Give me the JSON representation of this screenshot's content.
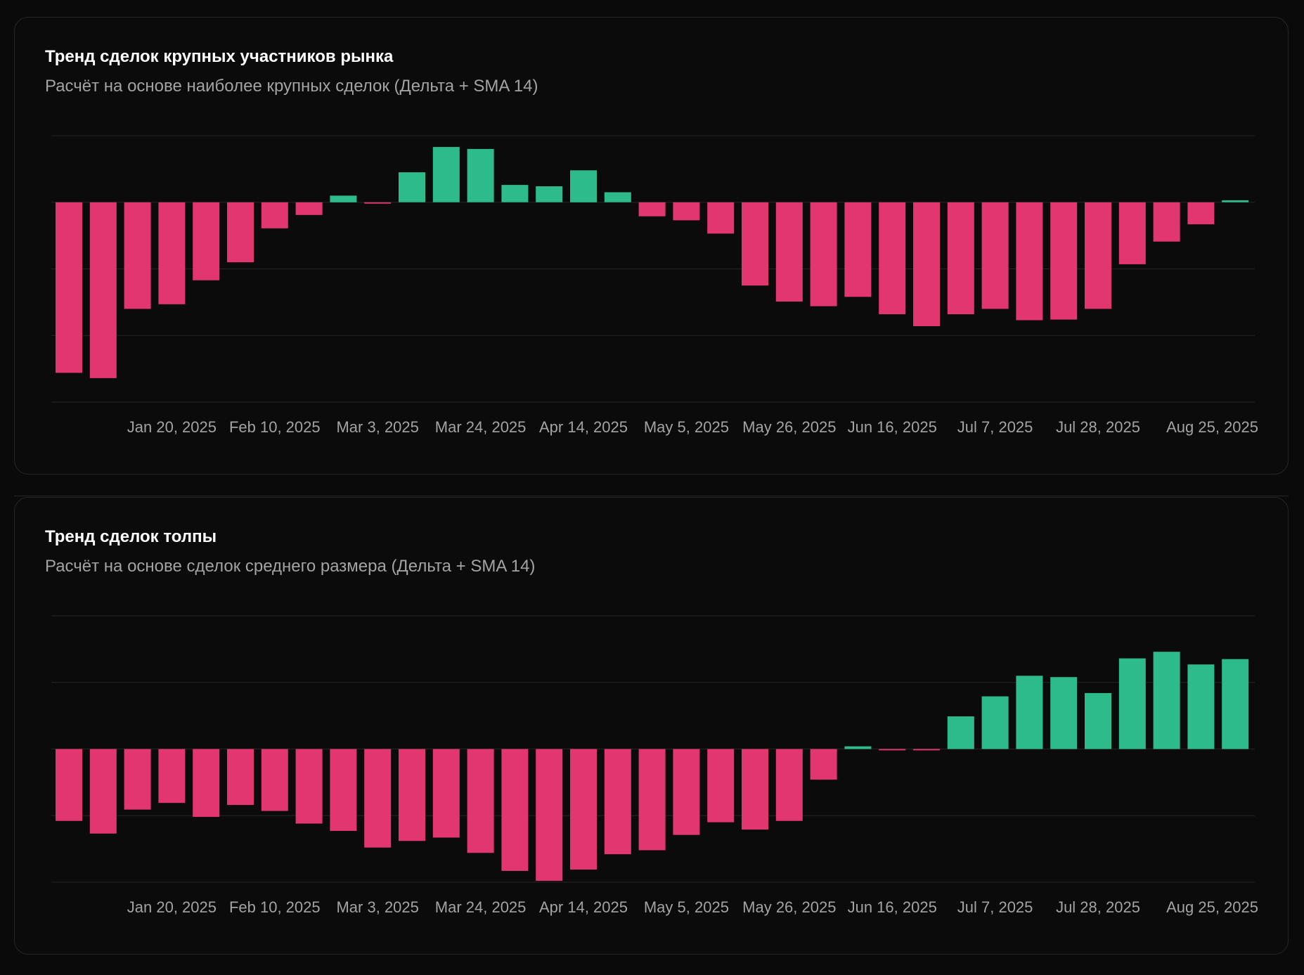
{
  "colors": {
    "background": "#0a0a0a",
    "card_border": "#262626",
    "grid": "#262626",
    "positive": "#2ebb8b",
    "negative": "#e23670",
    "title": "#ffffff",
    "subtitle": "#a3a3a3",
    "tick": "#a3a3a3"
  },
  "charts": [
    {
      "title": "Тренд сделок крупных участников рынка",
      "subtitle": "Расчёт на основе наиболее крупных сделок (Дельта + SMA 14)"
    },
    {
      "title": "Тренд сделок толпы",
      "subtitle": "Расчёт на основе сделок среднего размера (Дельта + SMA 14)"
    }
  ],
  "chart_data": [
    {
      "type": "bar",
      "title": "Тренд сделок крупных участников рынка",
      "subtitle": "Расчёт на основе наиболее крупных сделок (Дельта + SMA 14)",
      "xlabel": "",
      "ylabel": "",
      "y_tick_labels_shown": false,
      "ylim": [
        -3,
        1
      ],
      "grid": true,
      "legend": "none",
      "x_tick_labels": [
        "Jan 20, 2025",
        "Feb 10, 2025",
        "Mar 3, 2025",
        "Mar 24, 2025",
        "Apr 14, 2025",
        "May 5, 2025",
        "May 26, 2025",
        "Jun 16, 2025",
        "Jul 7, 2025",
        "Jul 28, 2025",
        "Aug 25, 2025"
      ],
      "x_tick_bar_index": [
        3,
        6,
        9,
        12,
        15,
        18,
        21,
        24,
        27,
        30,
        34
      ],
      "values": [
        -2.56,
        -2.64,
        -1.6,
        -1.53,
        -1.17,
        -0.9,
        -0.39,
        -0.19,
        0.1,
        -0.02,
        0.45,
        0.83,
        0.8,
        0.26,
        0.24,
        0.48,
        0.15,
        -0.21,
        -0.27,
        -0.47,
        -1.25,
        -1.49,
        -1.56,
        -1.42,
        -1.68,
        -1.86,
        -1.68,
        -1.6,
        -1.77,
        -1.76,
        -1.6,
        -0.93,
        -0.59,
        -0.33,
        0.03
      ]
    },
    {
      "type": "bar",
      "title": "Тренд сделок толпы",
      "subtitle": "Расчёт на основе сделок среднего размера (Дельта + SMA 14)",
      "xlabel": "",
      "ylabel": "",
      "y_tick_labels_shown": false,
      "ylim": [
        -2,
        2
      ],
      "grid": true,
      "legend": "none",
      "x_tick_labels": [
        "Jan 20, 2025",
        "Feb 10, 2025",
        "Mar 3, 2025",
        "Mar 24, 2025",
        "Apr 14, 2025",
        "May 5, 2025",
        "May 26, 2025",
        "Jun 16, 2025",
        "Jul 7, 2025",
        "Jul 28, 2025",
        "Aug 25, 2025"
      ],
      "x_tick_bar_index": [
        3,
        6,
        9,
        12,
        15,
        18,
        21,
        24,
        27,
        30,
        34
      ],
      "values": [
        -1.08,
        -1.27,
        -0.91,
        -0.81,
        -1.02,
        -0.84,
        -0.93,
        -1.12,
        -1.23,
        -1.48,
        -1.38,
        -1.33,
        -1.56,
        -1.83,
        -1.98,
        -1.81,
        -1.58,
        -1.52,
        -1.29,
        -1.1,
        -1.21,
        -1.08,
        -0.46,
        0.04,
        -0.02,
        -0.02,
        0.49,
        0.79,
        1.1,
        1.08,
        0.84,
        1.36,
        1.46,
        1.27,
        1.35
      ]
    }
  ]
}
